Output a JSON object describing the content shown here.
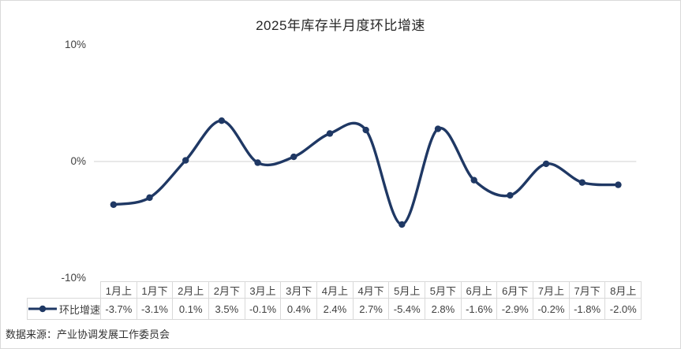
{
  "chart_data": {
    "type": "line",
    "smooth": true,
    "title": "2025年库存半月度环比增速",
    "series": [
      {
        "name": "环比增速",
        "values": [
          -3.7,
          -3.1,
          0.1,
          3.5,
          -0.1,
          0.4,
          2.4,
          2.7,
          -5.4,
          2.8,
          -1.6,
          -2.9,
          -0.2,
          -1.8,
          -2.0
        ],
        "value_labels": [
          "-3.7%",
          "-3.1%",
          "0.1%",
          "3.5%",
          "-0.1%",
          "0.4%",
          "2.4%",
          "2.7%",
          "-5.4%",
          "2.8%",
          "-1.6%",
          "-2.9%",
          "-0.2%",
          "-1.8%",
          "-2.0%"
        ]
      }
    ],
    "categories": [
      "1月上",
      "1月下",
      "2月上",
      "2月下",
      "3月上",
      "3月下",
      "4月上",
      "4月下",
      "5月上",
      "5月下",
      "6月上",
      "6月下",
      "7月上",
      "7月下",
      "8月上"
    ],
    "xlabel": "",
    "ylabel": "",
    "ylim": [
      -10,
      10
    ],
    "yticks": [
      {
        "value": 10,
        "label": "10%"
      },
      {
        "value": 0,
        "label": "0%"
      },
      {
        "value": -10,
        "label": "-10%"
      }
    ],
    "gridlines_at": [
      0
    ],
    "grid_on": true,
    "legend_position": "data-table-left",
    "colors": {
      "line": "#1F3864",
      "marker": "#1F3864",
      "gridline": "#D9D9D9",
      "table_border": "#D9D9D9",
      "text": "#404040",
      "title_text": "#262626",
      "background": "#FFFFFF"
    }
  },
  "source_note": "数据来源：产业协调发展工作委员会"
}
